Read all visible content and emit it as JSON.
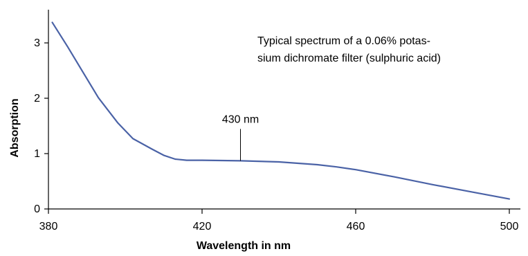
{
  "chart_data": {
    "type": "line",
    "title": "",
    "xlabel": "Wavelength in nm",
    "ylabel": "Absorption",
    "xlim": [
      380,
      500
    ],
    "ylim": [
      0,
      3.5
    ],
    "x_ticks": [
      380,
      420,
      460,
      500
    ],
    "y_ticks": [
      0,
      1,
      2,
      3
    ],
    "x_tick_labels": [
      "380",
      "420",
      "460",
      "500"
    ],
    "y_tick_labels": [
      "0",
      "1",
      "2",
      "3"
    ],
    "grid": false,
    "legend": "none",
    "series": [
      {
        "color": "#4a62a6",
        "x": [
          381,
          385,
          389,
          393,
          398,
          402,
          407,
          410,
          413,
          416,
          420,
          425,
          430,
          440,
          450,
          455,
          460,
          470,
          480,
          490,
          500
        ],
        "y": [
          3.37,
          2.93,
          2.47,
          2.01,
          1.56,
          1.27,
          1.08,
          0.97,
          0.9,
          0.88,
          0.88,
          0.875,
          0.87,
          0.85,
          0.8,
          0.76,
          0.71,
          0.58,
          0.44,
          0.31,
          0.18
        ]
      }
    ],
    "annotations": [
      {
        "text": "430 nm",
        "x": 430,
        "y": 0.87
      },
      {
        "text_lines": [
          "Typical spectrum of a 0.06% potas-",
          "sium dichromate filter (sulphuric acid)"
        ]
      }
    ]
  }
}
